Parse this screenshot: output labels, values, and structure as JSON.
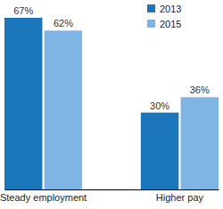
{
  "chart_data": {
    "type": "bar",
    "categories": [
      "Steady employment",
      "Higher pay"
    ],
    "series": [
      {
        "name": "2013",
        "color": "#1b75bb",
        "values": [
          67,
          30
        ],
        "value_labels": [
          "67%",
          "30%"
        ]
      },
      {
        "name": "2015",
        "color": "#7fb5e4",
        "values": [
          62,
          36
        ],
        "value_labels": [
          "62%",
          "36%"
        ]
      }
    ],
    "data_labels": true,
    "tick_labels": "x",
    "legend": "top-right"
  }
}
